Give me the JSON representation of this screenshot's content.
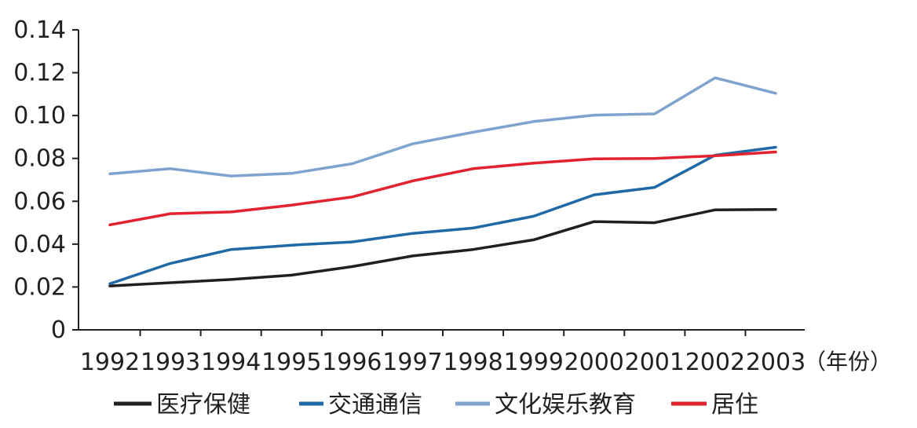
{
  "chart_data": {
    "type": "line",
    "title": "",
    "xlabel": "（年份）",
    "ylabel": "",
    "categories": [
      "1992",
      "1993",
      "1994",
      "1995",
      "1996",
      "1997",
      "1998",
      "1999",
      "2000",
      "2001",
      "2002",
      "2003"
    ],
    "ylim": [
      0,
      0.14
    ],
    "yticks": [
      "0",
      "0.02",
      "0.04",
      "0.06",
      "0.08",
      "0.10",
      "0.12",
      "0.14"
    ],
    "grid": false,
    "legend_position": "bottom",
    "series": [
      {
        "name": "医疗保健",
        "color": "#231f20",
        "values": [
          0.0205,
          0.022,
          0.0235,
          0.0255,
          0.0295,
          0.0345,
          0.0375,
          0.042,
          0.0505,
          0.05,
          0.056,
          0.0562
        ]
      },
      {
        "name": "交通通信",
        "color": "#1f6aa6",
        "values": [
          0.0215,
          0.031,
          0.0375,
          0.0395,
          0.041,
          0.045,
          0.0475,
          0.053,
          0.063,
          0.0665,
          0.0815,
          0.0852
        ]
      },
      {
        "name": "文化娱乐教育",
        "color": "#7fa3cf",
        "values": [
          0.0728,
          0.0752,
          0.0718,
          0.073,
          0.0775,
          0.0868,
          0.0922,
          0.0972,
          0.1002,
          0.1008,
          0.1176,
          0.1104
        ]
      },
      {
        "name": "居住",
        "color": "#e2222f",
        "values": [
          0.049,
          0.0542,
          0.055,
          0.0582,
          0.062,
          0.0695,
          0.0752,
          0.0778,
          0.0798,
          0.08,
          0.0812,
          0.083
        ]
      }
    ]
  }
}
